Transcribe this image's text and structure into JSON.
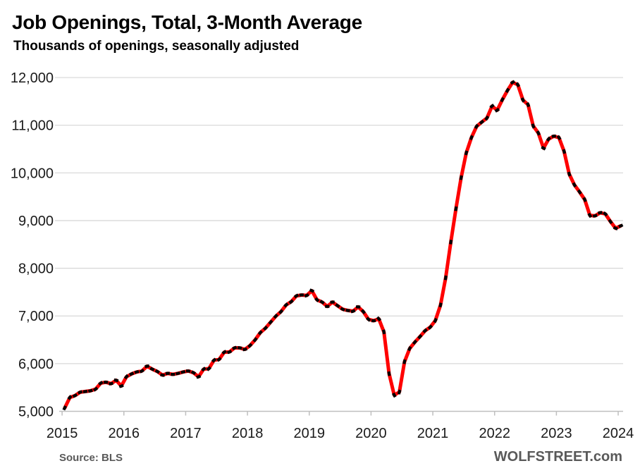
{
  "colors": {
    "line": "#FF0000",
    "marker": "#000000",
    "grid": "#D9D9D9",
    "axis": "#BFBFBF",
    "text": "#1A1A1A",
    "footer": "#595959"
  },
  "footer": {
    "source": "Source: BLS",
    "site": "WOLFSTREET.com"
  },
  "chart_data": {
    "type": "line",
    "title": "Job Openings, Total, 3-Month Average",
    "subtitle": "Thousands of openings, seasonally adjusted",
    "xlabel": "",
    "ylabel": "Thousands of openings",
    "ylim": [
      5000,
      12000
    ],
    "grid": "horizontal",
    "legend_position": "none",
    "x_unit": "month",
    "x_first_point": "2015-01",
    "x_last_point": "2024-01",
    "x_ticks": [
      "2015",
      "2016",
      "2017",
      "2018",
      "2019",
      "2020",
      "2021",
      "2022",
      "2023",
      "2024"
    ],
    "y_ticks": [
      {
        "value": 5000,
        "label": "5,000"
      },
      {
        "value": 6000,
        "label": "6,000"
      },
      {
        "value": 7000,
        "label": "7,000"
      },
      {
        "value": 8000,
        "label": "8,000"
      },
      {
        "value": 9000,
        "label": "9,000"
      },
      {
        "value": 10000,
        "label": "10,000"
      },
      {
        "value": 11000,
        "label": "11,000"
      },
      {
        "value": 12000,
        "label": "12,000"
      }
    ],
    "series": [
      {
        "name": "Job openings, total, 3-month average (thousands, seasonally adjusted)",
        "color": "#FF0000",
        "marker_color": "#000000",
        "values": [
          5070,
          5290,
          5330,
          5400,
          5415,
          5430,
          5465,
          5590,
          5610,
          5580,
          5650,
          5530,
          5725,
          5785,
          5825,
          5845,
          5945,
          5885,
          5835,
          5760,
          5795,
          5775,
          5795,
          5825,
          5845,
          5810,
          5725,
          5885,
          5895,
          6070,
          6090,
          6240,
          6245,
          6330,
          6330,
          6300,
          6380,
          6500,
          6650,
          6745,
          6870,
          6995,
          7090,
          7230,
          7300,
          7420,
          7440,
          7430,
          7530,
          7340,
          7290,
          7200,
          7290,
          7215,
          7140,
          7115,
          7100,
          7190,
          7090,
          6930,
          6900,
          6940,
          6665,
          5790,
          5340,
          5405,
          6040,
          6315,
          6450,
          6565,
          6690,
          6765,
          6905,
          7230,
          7800,
          8550,
          9250,
          9900,
          10420,
          10740,
          10975,
          11065,
          11150,
          11400,
          11315,
          11535,
          11730,
          11900,
          11850,
          11530,
          11430,
          10985,
          10835,
          10520,
          10710,
          10770,
          10740,
          10450,
          9975,
          9750,
          9600,
          9440,
          9110,
          9100,
          9165,
          9140,
          8980,
          8840,
          8890
        ]
      }
    ]
  }
}
